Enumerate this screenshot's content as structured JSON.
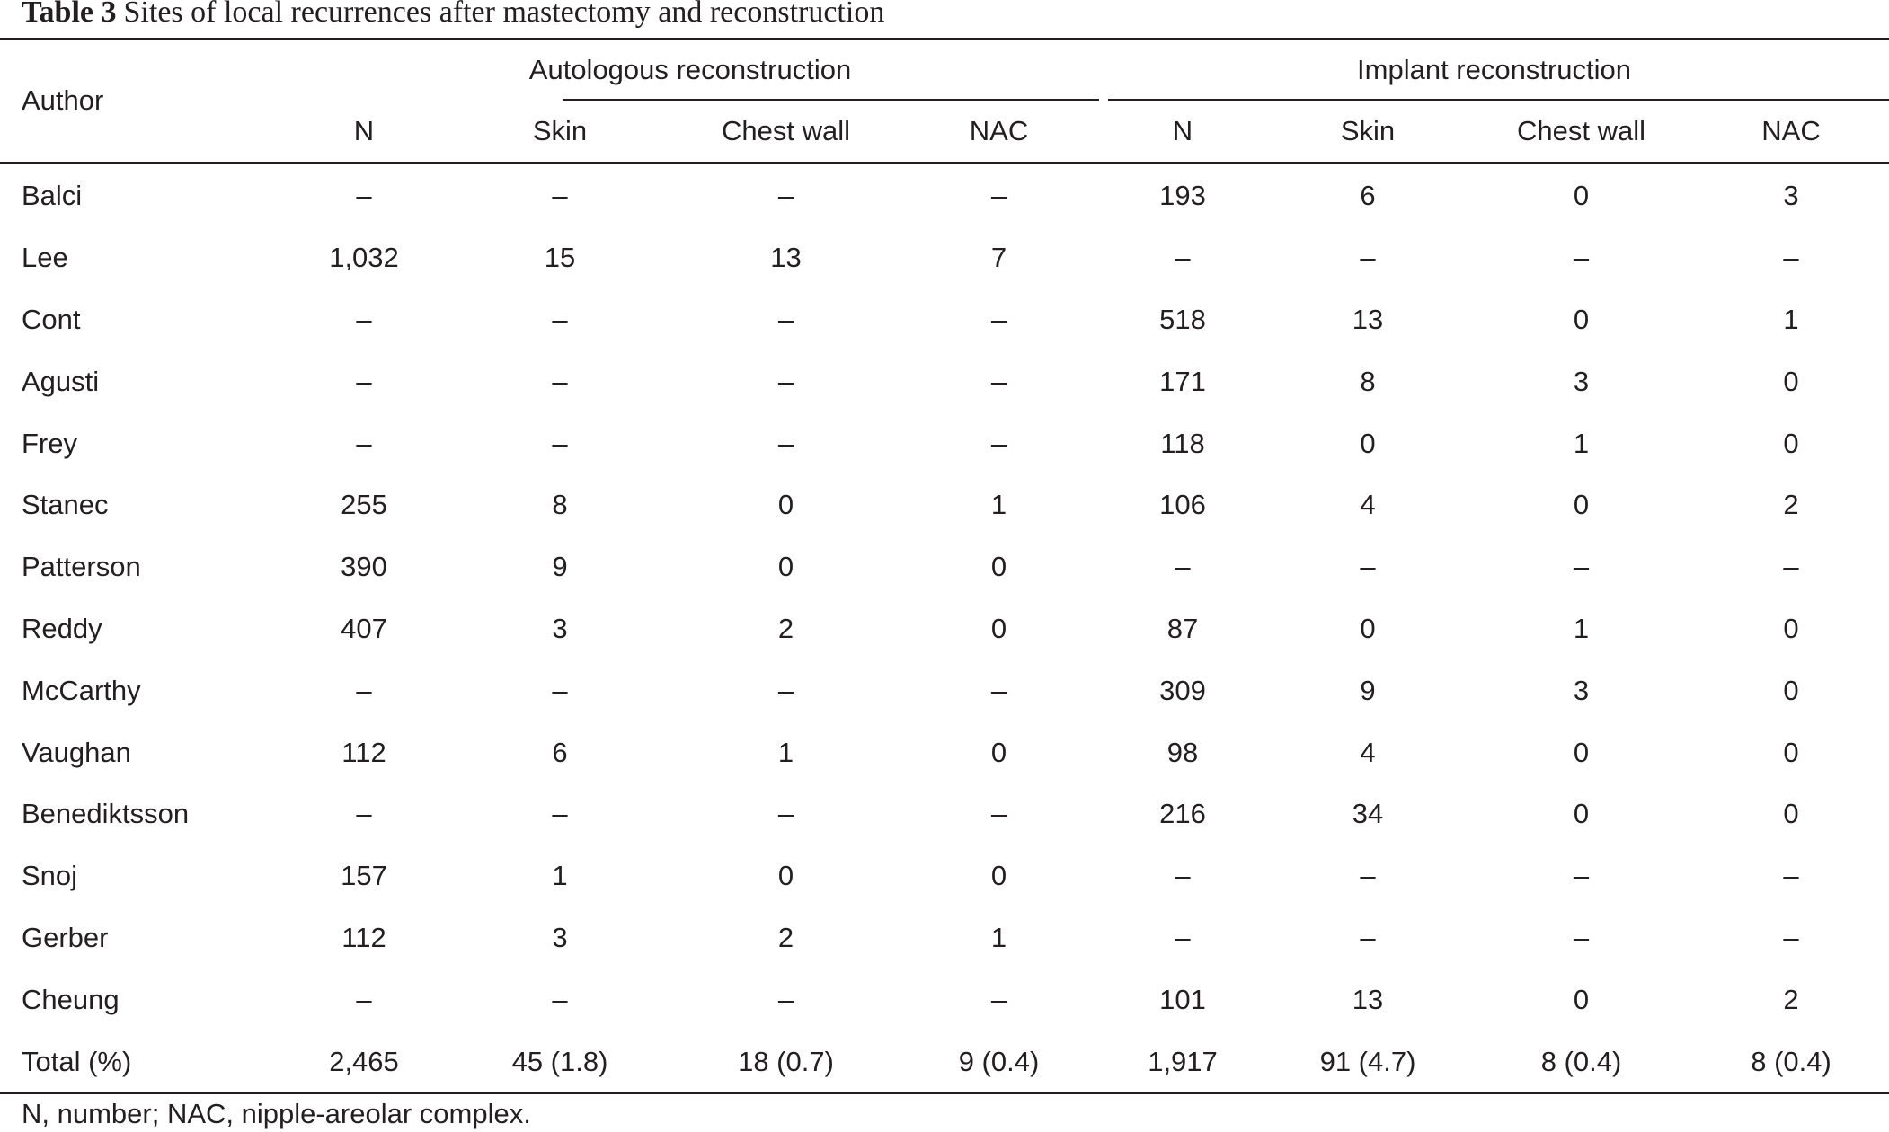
{
  "caption": {
    "label": "Table 3",
    "text": "Sites of local recurrences after mastectomy and reconstruction"
  },
  "headers": {
    "author": "Author",
    "autologous": "Autologous reconstruction",
    "implant": "Implant reconstruction",
    "columns": [
      "N",
      "Skin",
      "Chest wall",
      "NAC",
      "N",
      "Skin",
      "Chest wall",
      "NAC"
    ]
  },
  "rows": [
    {
      "author": "Balci",
      "values": [
        "–",
        "–",
        "–",
        "–",
        "193",
        "6",
        "0",
        "3"
      ]
    },
    {
      "author": "Lee",
      "values": [
        "1,032",
        "15",
        "13",
        "7",
        "–",
        "–",
        "–",
        "–"
      ]
    },
    {
      "author": "Cont",
      "values": [
        "–",
        "–",
        "–",
        "–",
        "518",
        "13",
        "0",
        "1"
      ]
    },
    {
      "author": "Agusti",
      "values": [
        "–",
        "–",
        "–",
        "–",
        "171",
        "8",
        "3",
        "0"
      ]
    },
    {
      "author": "Frey",
      "values": [
        "–",
        "–",
        "–",
        "–",
        "118",
        "0",
        "1",
        "0"
      ]
    },
    {
      "author": "Stanec",
      "values": [
        "255",
        "8",
        "0",
        "1",
        "106",
        "4",
        "0",
        "2"
      ]
    },
    {
      "author": "Patterson",
      "values": [
        "390",
        "9",
        "0",
        "0",
        "–",
        "–",
        "–",
        "–"
      ]
    },
    {
      "author": "Reddy",
      "values": [
        "407",
        "3",
        "2",
        "0",
        "87",
        "0",
        "1",
        "0"
      ]
    },
    {
      "author": "McCarthy",
      "values": [
        "–",
        "–",
        "–",
        "–",
        "309",
        "9",
        "3",
        "0"
      ]
    },
    {
      "author": "Vaughan",
      "values": [
        "112",
        "6",
        "1",
        "0",
        "98",
        "4",
        "0",
        "0"
      ]
    },
    {
      "author": "Benediktsson",
      "values": [
        "–",
        "–",
        "–",
        "–",
        "216",
        "34",
        "0",
        "0"
      ]
    },
    {
      "author": "Snoj",
      "values": [
        "157",
        "1",
        "0",
        "0",
        "–",
        "–",
        "–",
        "–"
      ]
    },
    {
      "author": "Gerber",
      "values": [
        "112",
        "3",
        "2",
        "1",
        "–",
        "–",
        "–",
        "–"
      ]
    },
    {
      "author": "Cheung",
      "values": [
        "–",
        "–",
        "–",
        "–",
        "101",
        "13",
        "0",
        "2"
      ]
    }
  ],
  "total": {
    "author": "Total (%)",
    "values": [
      "2,465",
      "45 (1.8)",
      "18 (0.7)",
      "9 (0.4)",
      "1,917",
      "91 (4.7)",
      "8 (0.4)",
      "8 (0.4)"
    ]
  },
  "footnote": "N, number; NAC, nipple-areolar complex."
}
